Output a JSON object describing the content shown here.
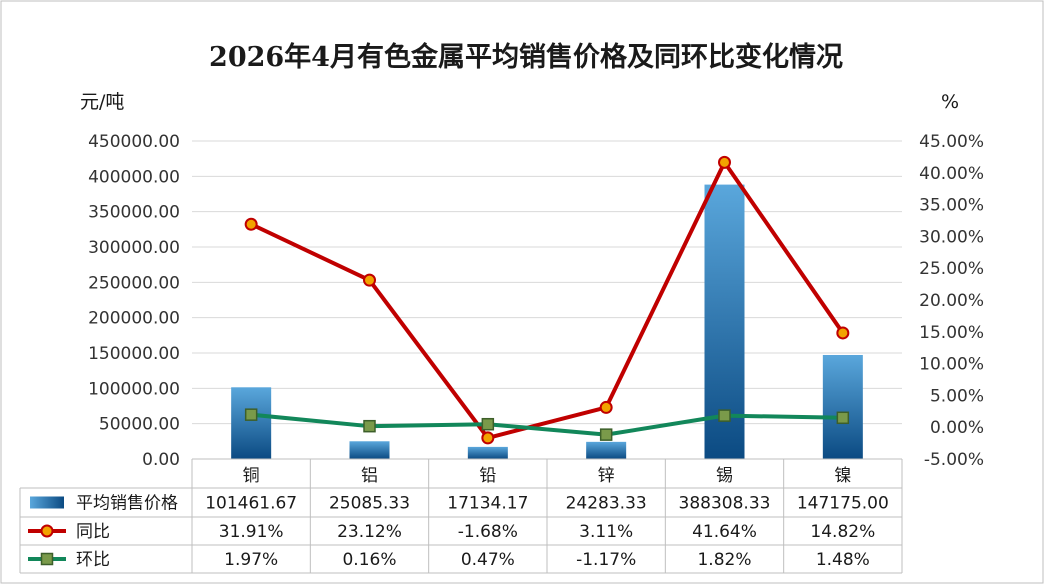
{
  "chart_data": {
    "type": "bar",
    "title": "2026年4月有色金属平均销售价格及同环比变化情况",
    "ylabel": "元/吨",
    "y2label": "%",
    "ylim": [
      0,
      450000
    ],
    "y2lim": [
      -5,
      45
    ],
    "yticks": [
      "0.00",
      "50000.00",
      "100000.00",
      "150000.00",
      "200000.00",
      "250000.00",
      "300000.00",
      "350000.00",
      "400000.00",
      "450000.00"
    ],
    "y2ticks": [
      "-5.00%",
      "0.00%",
      "5.00%",
      "10.00%",
      "15.00%",
      "20.00%",
      "25.00%",
      "30.00%",
      "35.00%",
      "40.00%",
      "45.00%"
    ],
    "grid": true,
    "categories": [
      "铜",
      "铝",
      "铅",
      "锌",
      "锡",
      "镍"
    ],
    "series": [
      {
        "name": "平均销售价格",
        "kind": "bar",
        "axis": "left",
        "values": [
          101461.67,
          25085.33,
          17134.17,
          24283.33,
          388308.33,
          147175.0
        ],
        "labels": [
          "101461.67",
          "25085.33",
          "17134.17",
          "24283.33",
          "388308.33",
          "147175.00"
        ],
        "color": "#2f7fc0"
      },
      {
        "name": "同比",
        "kind": "line",
        "axis": "right",
        "values": [
          31.91,
          23.12,
          -1.68,
          3.11,
          41.64,
          14.82
        ],
        "labels": [
          "31.91%",
          "23.12%",
          "-1.68%",
          "3.11%",
          "41.64%",
          "14.82%"
        ],
        "color": "#c00000"
      },
      {
        "name": "环比",
        "kind": "line",
        "axis": "right",
        "values": [
          1.97,
          0.16,
          0.47,
          -1.17,
          1.82,
          1.48
        ],
        "labels": [
          "1.97%",
          "0.16%",
          "0.47%",
          "-1.17%",
          "1.82%",
          "1.48%"
        ],
        "color": "#12875a"
      }
    ]
  }
}
